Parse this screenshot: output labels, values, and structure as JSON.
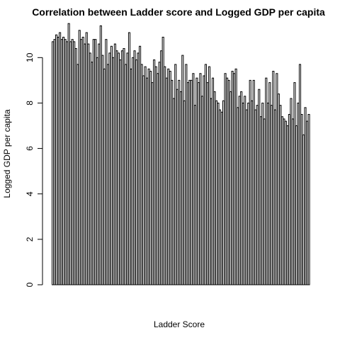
{
  "chart_data": {
    "type": "bar",
    "title": "Correlation between Ladder score and Logged GDP per capita",
    "xlabel": "Ladder Score",
    "ylabel": "Logged GDP per capita",
    "ylim": [
      0,
      11.6
    ],
    "yticks": [
      0,
      2,
      4,
      6,
      8,
      10
    ],
    "grid": false,
    "legend": "none",
    "bar_fill": "#ffffff",
    "bar_stroke": "#000000",
    "values": [
      10.7,
      10.8,
      11.0,
      10.9,
      11.1,
      10.8,
      10.9,
      10.8,
      10.7,
      11.5,
      10.7,
      10.8,
      10.7,
      10.4,
      9.7,
      11.2,
      10.8,
      10.9,
      10.6,
      11.1,
      10.6,
      10.2,
      9.8,
      10.8,
      10.8,
      10.0,
      10.6,
      11.4,
      10.1,
      9.5,
      10.8,
      9.7,
      10.2,
      10.5,
      10.0,
      10.6,
      10.3,
      10.2,
      9.9,
      10.3,
      10.4,
      9.7,
      10.2,
      11.1,
      9.5,
      10.0,
      10.3,
      9.9,
      10.2,
      10.5,
      9.7,
      9.2,
      9.6,
      9.1,
      9.5,
      9.4,
      8.9,
      9.9,
      9.6,
      9.3,
      9.8,
      10.3,
      10.9,
      9.6,
      9.1,
      9.5,
      9.4,
      9.0,
      8.2,
      9.7,
      8.6,
      9.0,
      8.5,
      10.1,
      8.1,
      9.7,
      8.9,
      9.0,
      9.0,
      9.3,
      7.9,
      9.1,
      8.9,
      9.3,
      8.3,
      9.2,
      9.7,
      8.9,
      9.6,
      8.2,
      9.1,
      8.5,
      8.1,
      8.0,
      7.7,
      7.6,
      8.1,
      9.3,
      9.1,
      9.0,
      8.5,
      9.4,
      9.3,
      9.5,
      7.8,
      8.3,
      8.5,
      8.0,
      8.3,
      7.7,
      8.0,
      9.0,
      8.1,
      9.0,
      7.7,
      7.9,
      8.6,
      7.4,
      8.0,
      7.3,
      9.1,
      8.0,
      8.9,
      7.9,
      9.4,
      7.7,
      9.3,
      8.4,
      7.9,
      7.4,
      7.3,
      7.2,
      7.0,
      7.5,
      8.2,
      7.3,
      8.9,
      7.0,
      8.0,
      9.7,
      7.5,
      6.6,
      7.8,
      7.2,
      7.5
    ]
  }
}
